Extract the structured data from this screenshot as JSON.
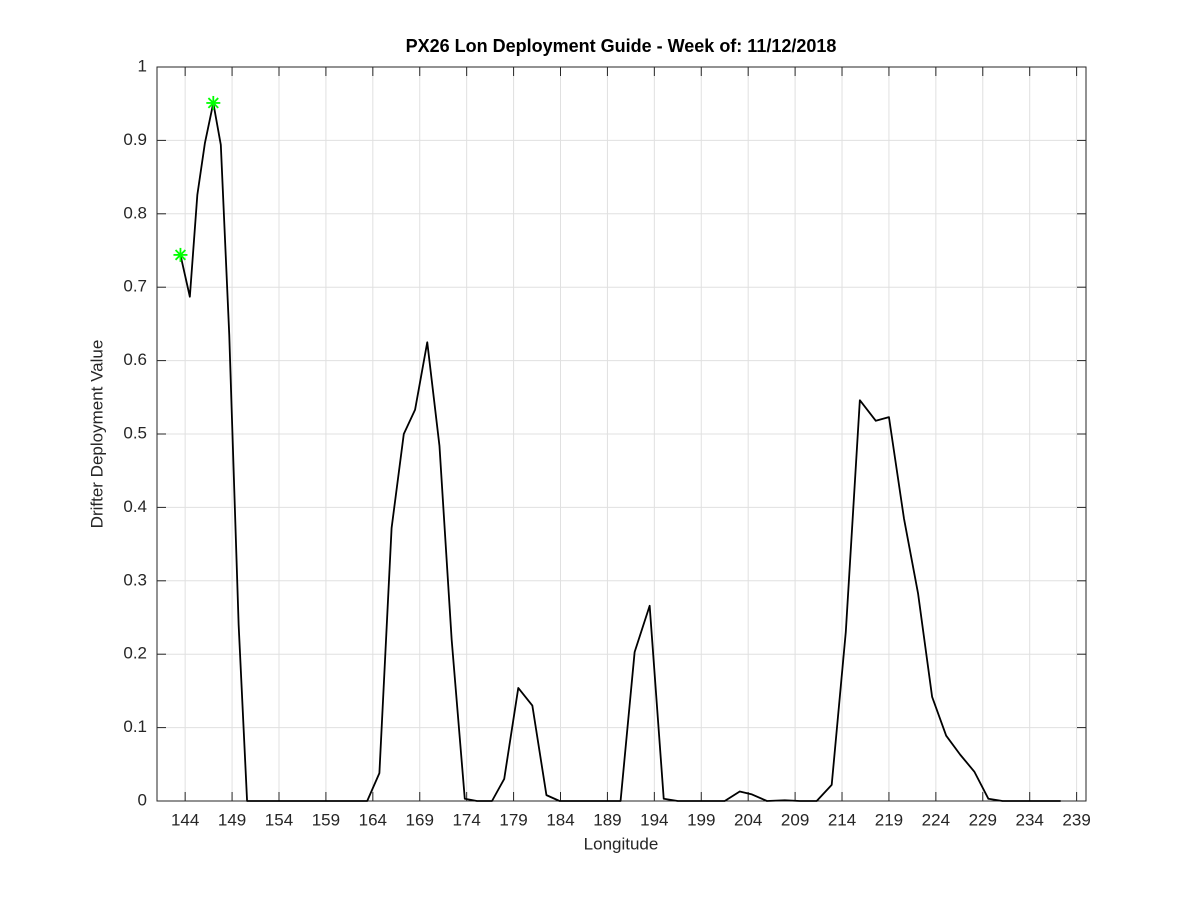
{
  "chart_data": {
    "type": "line",
    "title": "PX26 Lon Deployment Guide - Week of: 11/12/2018",
    "xlabel": "Longitude",
    "ylabel": "Drifter Deployment Value",
    "xlim": [
      141,
      240
    ],
    "ylim": [
      0,
      1
    ],
    "xticks": [
      144,
      149,
      154,
      159,
      164,
      169,
      174,
      179,
      184,
      189,
      194,
      199,
      204,
      209,
      214,
      219,
      224,
      229,
      234,
      239
    ],
    "yticks": [
      0,
      0.1,
      0.2,
      0.3,
      0.4,
      0.5,
      0.6,
      0.7,
      0.8,
      0.9,
      1
    ],
    "grid": true,
    "series": [
      {
        "style": "line",
        "color": "#000000",
        "x": [
          143.5,
          144.5,
          145.3,
          146.1,
          147.0,
          147.8,
          148.7,
          149.7,
          150.6,
          163.4,
          164.7,
          166.0,
          167.3,
          168.5,
          169.8,
          171.1,
          172.4,
          173.8,
          175.1,
          176.7,
          178.0,
          179.5,
          181.0,
          182.5,
          183.9,
          190.4,
          191.9,
          193.5,
          195.0,
          196.5,
          201.5,
          203.1,
          204.4,
          206.0,
          207.9,
          209.5,
          211.3,
          212.9,
          214.4,
          215.9,
          217.6,
          219.0,
          220.6,
          222.1,
          223.6,
          225.1,
          226.6,
          228.1,
          229.6,
          231.1,
          237.3
        ],
        "values": [
          0.744,
          0.687,
          0.826,
          0.896,
          0.951,
          0.894,
          0.635,
          0.24,
          0,
          0,
          0.038,
          0.372,
          0.5,
          0.533,
          0.625,
          0.484,
          0.22,
          0.003,
          0,
          0,
          0.03,
          0.154,
          0.13,
          0.008,
          0,
          0,
          0.203,
          0.266,
          0.003,
          0,
          0,
          0.013,
          0.009,
          0,
          0.001,
          0,
          0,
          0.022,
          0.23,
          0.546,
          0.518,
          0.523,
          0.385,
          0.283,
          0.142,
          0.089,
          0.063,
          0.04,
          0.003,
          0,
          0
        ]
      },
      {
        "style": "asterisk",
        "color": "#00ff00",
        "x": [
          143.5,
          147.0
        ],
        "values": [
          0.744,
          0.951
        ]
      }
    ]
  }
}
